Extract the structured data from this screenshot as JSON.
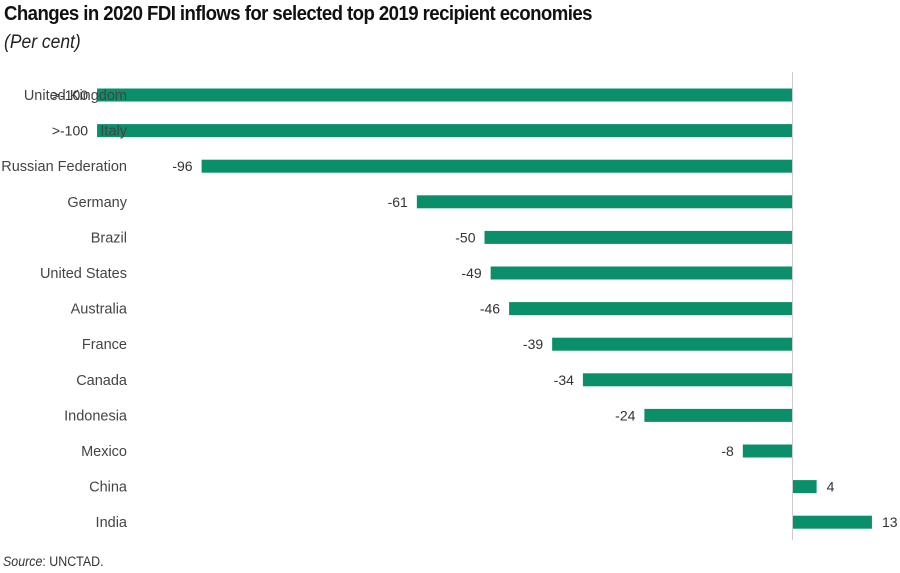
{
  "chart_data": {
    "type": "bar",
    "orientation": "horizontal",
    "title": "Changes in 2020 FDI inflows for selected top 2019 recipient economies",
    "subtitle": "(Per cent)",
    "xlabel": "",
    "ylabel": "",
    "xlim": [
      -113,
      13
    ],
    "grid": false,
    "legend": "none",
    "bar_color": "#0a8f6a",
    "axis_color": "#cccccc",
    "categories": [
      "United Kingdom",
      "Italy",
      "Russian Federation",
      "Germany",
      "Brazil",
      "United States",
      "Australia",
      "France",
      "Canada",
      "Indonesia",
      "Mexico",
      "China",
      "India"
    ],
    "values": [
      -113,
      -113,
      -96,
      -61,
      -50,
      -49,
      -46,
      -39,
      -34,
      -24,
      -8,
      4,
      13
    ],
    "data_labels": [
      ">-100",
      ">-100",
      "-96",
      "-61",
      "-50",
      "-49",
      "-46",
      "-39",
      "-34",
      "-24",
      "-8",
      "4",
      "13"
    ]
  },
  "source": {
    "label": "Source",
    "text": ": UNCTAD."
  }
}
